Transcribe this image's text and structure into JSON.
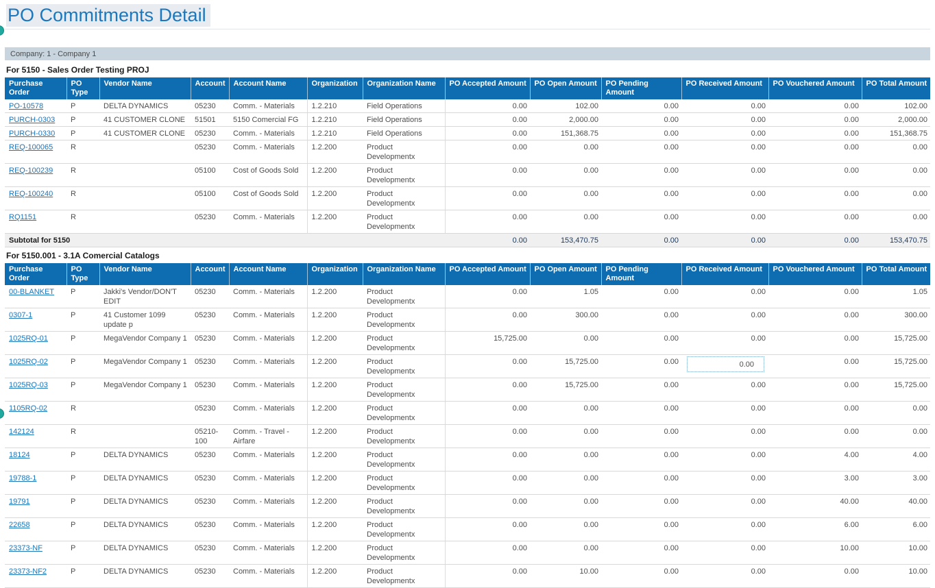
{
  "page": {
    "title": "PO Commitments Detail",
    "company_bar": "Company: 1 - Company 1"
  },
  "colors": {
    "header_blue": "#0e6db0",
    "title_blue": "#1b78be",
    "link_blue": "#1b75bb",
    "subtotal_navy": "#17375d",
    "company_bar_bg": "#c8d5df",
    "edge_handle_teal": "#21a99f"
  },
  "columns": [
    "Purchase Order",
    "PO Type",
    "Vendor Name",
    "Account",
    "Account Name",
    "Organization",
    "Organization Name",
    "PO Accepted Amount",
    "PO Open Amount",
    "PO Pending Amount",
    "PO Received Amount",
    "PO Vouchered Amount",
    "PO Total Amount"
  ],
  "sections": [
    {
      "heading": "For 5150 -  Sales Order Testing PROJ",
      "rows": [
        {
          "po": "PO-10578",
          "type": "P",
          "vendor": "DELTA DYNAMICS",
          "account": "05230",
          "account_name": "Comm. - Materials",
          "org": "1.2.210",
          "org_name": "Field Operations",
          "amounts": [
            "0.00",
            "102.00",
            "0.00",
            "0.00",
            "0.00",
            "102.00"
          ]
        },
        {
          "po": "PURCH-0303",
          "type": "P",
          "vendor": "41 CUSTOMER CLONE",
          "account": "51501",
          "account_name": "5150 Comercial FG",
          "org": "1.2.210",
          "org_name": "Field Operations",
          "amounts": [
            "0.00",
            "2,000.00",
            "0.00",
            "0.00",
            "0.00",
            "2,000.00"
          ]
        },
        {
          "po": "PURCH-0330",
          "type": "P",
          "vendor": "41 CUSTOMER CLONE",
          "account": "05230",
          "account_name": "Comm. - Materials",
          "org": "1.2.210",
          "org_name": "Field Operations",
          "amounts": [
            "0.00",
            "151,368.75",
            "0.00",
            "0.00",
            "0.00",
            "151,368.75"
          ]
        },
        {
          "po": "REQ-100065",
          "type": "R",
          "vendor": "",
          "account": "05230",
          "account_name": "Comm. - Materials",
          "org": "1.2.200",
          "org_name": "Product Developmentx",
          "amounts": [
            "0.00",
            "0.00",
            "0.00",
            "0.00",
            "0.00",
            "0.00"
          ]
        },
        {
          "po": "REQ-100239",
          "type": "R",
          "vendor": "",
          "account": "05100",
          "account_name": "Cost of Goods Sold",
          "org": "1.2.200",
          "org_name": "Product Developmentx",
          "amounts": [
            "0.00",
            "0.00",
            "0.00",
            "0.00",
            "0.00",
            "0.00"
          ]
        },
        {
          "po": "REQ-100240",
          "type": "R",
          "vendor": "",
          "account": "05100",
          "account_name": "Cost of Goods Sold",
          "org": "1.2.200",
          "org_name": "Product Developmentx",
          "amounts": [
            "0.00",
            "0.00",
            "0.00",
            "0.00",
            "0.00",
            "0.00"
          ]
        },
        {
          "po": "RQ1151",
          "type": "R",
          "vendor": "",
          "account": "05230",
          "account_name": "Comm. - Materials",
          "org": "1.2.200",
          "org_name": "Product Developmentx",
          "amounts": [
            "0.00",
            "0.00",
            "0.00",
            "0.00",
            "0.00",
            "0.00"
          ]
        }
      ],
      "subtotal": {
        "label": "Subtotal for 5150",
        "amounts": [
          "0.00",
          "153,470.75",
          "0.00",
          "0.00",
          "0.00",
          "153,470.75"
        ]
      }
    },
    {
      "heading": "For 5150.001 -  3.1A Comercial Catalogs",
      "rows": [
        {
          "po": "00-BLANKET",
          "type": "P",
          "vendor": "Jakki's Vendor/DON'T EDIT",
          "account": "05230",
          "account_name": "Comm. - Materials",
          "org": "1.2.200",
          "org_name": "Product Developmentx",
          "amounts": [
            "0.00",
            "1.05",
            "0.00",
            "0.00",
            "0.00",
            "1.05"
          ]
        },
        {
          "po": "0307-1",
          "type": "P",
          "vendor": "41 Customer 1099 update p",
          "account": "05230",
          "account_name": "Comm. - Materials",
          "org": "1.2.200",
          "org_name": "Product Developmentx",
          "amounts": [
            "0.00",
            "300.00",
            "0.00",
            "0.00",
            "0.00",
            "300.00"
          ]
        },
        {
          "po": "1025RQ-01",
          "type": "P",
          "vendor": "MegaVendor Company 1",
          "account": "05230",
          "account_name": "Comm. - Materials",
          "org": "1.2.200",
          "org_name": "Product Developmentx",
          "amounts": [
            "15,725.00",
            "0.00",
            "0.00",
            "0.00",
            "0.00",
            "15,725.00"
          ]
        },
        {
          "po": "1025RQ-02",
          "type": "P",
          "vendor": "MegaVendor Company 1",
          "account": "05230",
          "account_name": "Comm. - Materials",
          "org": "1.2.200",
          "org_name": "Product Developmentx",
          "amounts": [
            "0.00",
            "15,725.00",
            "0.00",
            "0.00",
            "0.00",
            "15,725.00"
          ],
          "focused_amount": 3
        },
        {
          "po": "1025RQ-03",
          "type": "P",
          "vendor": "MegaVendor Company 1",
          "account": "05230",
          "account_name": "Comm. - Materials",
          "org": "1.2.200",
          "org_name": "Product Developmentx",
          "amounts": [
            "0.00",
            "15,725.00",
            "0.00",
            "0.00",
            "0.00",
            "15,725.00"
          ]
        },
        {
          "po": "1105RQ-02",
          "type": "R",
          "vendor": "",
          "account": "05230",
          "account_name": "Comm. - Materials",
          "org": "1.2.200",
          "org_name": "Product Developmentx",
          "amounts": [
            "0.00",
            "0.00",
            "0.00",
            "0.00",
            "0.00",
            "0.00"
          ]
        },
        {
          "po": "142124",
          "type": "R",
          "vendor": "",
          "account": "05210-100",
          "account_name": "Comm. - Travel - Airfare",
          "org": "1.2.200",
          "org_name": "Product Developmentx",
          "amounts": [
            "0.00",
            "0.00",
            "0.00",
            "0.00",
            "0.00",
            "0.00"
          ]
        },
        {
          "po": "18124",
          "type": "P",
          "vendor": "DELTA DYNAMICS",
          "account": "05230",
          "account_name": "Comm. - Materials",
          "org": "1.2.200",
          "org_name": "Product Developmentx",
          "amounts": [
            "0.00",
            "0.00",
            "0.00",
            "0.00",
            "4.00",
            "4.00"
          ]
        },
        {
          "po": "19788-1",
          "type": "P",
          "vendor": "DELTA DYNAMICS",
          "account": "05230",
          "account_name": "Comm. - Materials",
          "org": "1.2.200",
          "org_name": "Product Developmentx",
          "amounts": [
            "0.00",
            "0.00",
            "0.00",
            "0.00",
            "3.00",
            "3.00"
          ]
        },
        {
          "po": "19791",
          "type": "P",
          "vendor": "DELTA DYNAMICS",
          "account": "05230",
          "account_name": "Comm. - Materials",
          "org": "1.2.200",
          "org_name": "Product Developmentx",
          "amounts": [
            "0.00",
            "0.00",
            "0.00",
            "0.00",
            "40.00",
            "40.00"
          ]
        },
        {
          "po": "22658",
          "type": "P",
          "vendor": "DELTA DYNAMICS",
          "account": "05230",
          "account_name": "Comm. - Materials",
          "org": "1.2.200",
          "org_name": "Product Developmentx",
          "amounts": [
            "0.00",
            "0.00",
            "0.00",
            "0.00",
            "6.00",
            "6.00"
          ]
        },
        {
          "po": "23373-NF",
          "type": "P",
          "vendor": "DELTA DYNAMICS",
          "account": "05230",
          "account_name": "Comm. - Materials",
          "org": "1.2.200",
          "org_name": "Product Developmentx",
          "amounts": [
            "0.00",
            "0.00",
            "0.00",
            "0.00",
            "10.00",
            "10.00"
          ]
        },
        {
          "po": "23373-NF2",
          "type": "P",
          "vendor": "DELTA DYNAMICS",
          "account": "05230",
          "account_name": "Comm. - Materials",
          "org": "1.2.200",
          "org_name": "Product Developmentx",
          "amounts": [
            "0.00",
            "10.00",
            "0.00",
            "0.00",
            "0.00",
            "10.00"
          ]
        }
      ]
    }
  ]
}
